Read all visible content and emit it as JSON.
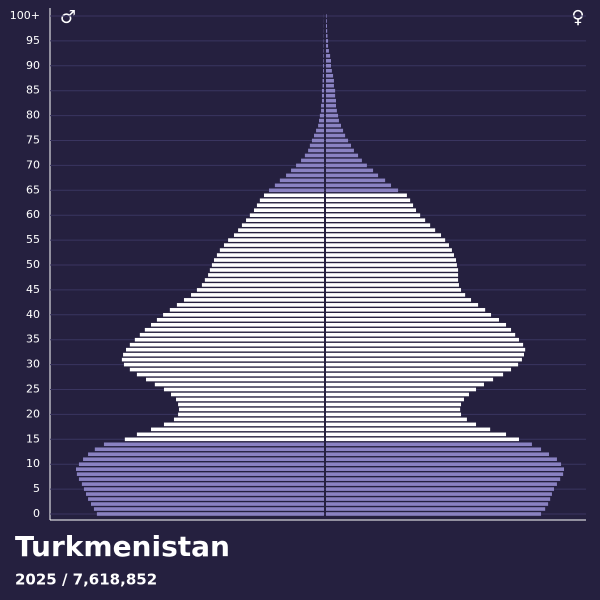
{
  "chart_data": {
    "type": "pyramid",
    "title": "Turkmenistan",
    "subtitle": "2025  /  7,618,852",
    "male_symbol": "♂",
    "female_symbol": "♀",
    "categories": [
      "0",
      null,
      null,
      null,
      null,
      "5",
      null,
      null,
      null,
      null,
      "10",
      null,
      null,
      null,
      null,
      "15",
      null,
      null,
      null,
      null,
      "20",
      null,
      null,
      null,
      null,
      "25",
      null,
      null,
      null,
      null,
      "30",
      null,
      null,
      null,
      null,
      "35",
      null,
      null,
      null,
      null,
      "40",
      null,
      null,
      null,
      null,
      "45",
      null,
      null,
      null,
      null,
      "50",
      null,
      null,
      null,
      null,
      "55",
      null,
      null,
      null,
      null,
      "60",
      null,
      null,
      null,
      null,
      "65",
      null,
      null,
      null,
      null,
      "70",
      null,
      null,
      null,
      null,
      "75",
      null,
      null,
      null,
      null,
      "80",
      null,
      null,
      null,
      null,
      "85",
      null,
      null,
      null,
      null,
      "90",
      null,
      null,
      null,
      null,
      "95",
      null,
      null,
      null,
      null,
      "100+"
    ],
    "series": [
      {
        "name": "Male",
        "values": [
          77200,
          78200,
          79200,
          80200,
          80900,
          81600,
          82300,
          83300,
          84000,
          84300,
          83300,
          81900,
          80200,
          77900,
          74800,
          67700,
          63600,
          58800,
          54400,
          51000,
          49600,
          49300,
          49600,
          50300,
          52000,
          54400,
          57500,
          60500,
          63600,
          66000,
          68000,
          68700,
          68300,
          67300,
          66000,
          64300,
          62600,
          60900,
          58800,
          56800,
          54700,
          52400,
          50000,
          47600,
          45200,
          43200,
          41500,
          40500,
          39400,
          38800,
          38100,
          37400,
          36400,
          35400,
          34000,
          32600,
          30600,
          29200,
          27900,
          26500,
          25200,
          23800,
          22800,
          21800,
          20400,
          18700,
          16700,
          15000,
          12900,
          11200,
          9500,
          7800,
          6500,
          5400,
          4800,
          4100,
          3400,
          2700,
          2000,
          1700,
          1400,
          1000,
          1000,
          700,
          700,
          700,
          500,
          500,
          400,
          300,
          300,
          200,
          200,
          150,
          120,
          100,
          80,
          60,
          50,
          40,
          30
        ]
      },
      {
        "name": "Female",
        "values": [
          73100,
          74500,
          75500,
          76200,
          76800,
          77500,
          78500,
          79600,
          80600,
          80900,
          79900,
          78500,
          75800,
          73100,
          70000,
          65600,
          61200,
          55800,
          51000,
          47900,
          45900,
          45600,
          45900,
          46900,
          48600,
          51000,
          53700,
          56800,
          60200,
          62900,
          65300,
          66600,
          67300,
          67700,
          67000,
          65600,
          64300,
          62900,
          61200,
          58800,
          56100,
          54100,
          51700,
          49300,
          47300,
          45900,
          45200,
          44900,
          44900,
          44900,
          44500,
          44200,
          43500,
          42800,
          41800,
          40500,
          39100,
          37100,
          35400,
          33700,
          32000,
          30600,
          29600,
          28600,
          27500,
          24500,
          22100,
          20100,
          17700,
          16000,
          13900,
          12200,
          10900,
          9500,
          8500,
          7500,
          6500,
          5800,
          5100,
          4400,
          4100,
          3700,
          3400,
          3400,
          3100,
          3100,
          2700,
          2700,
          2400,
          2000,
          1700,
          1700,
          1400,
          1000,
          700,
          700,
          500,
          400,
          340,
          270,
          200
        ]
      }
    ],
    "color_bands": [
      {
        "from": 0,
        "to": 14,
        "color": "#8a82c2"
      },
      {
        "from": 15,
        "to": 64,
        "color": "#ffffff"
      },
      {
        "from": 65,
        "to": 100,
        "color": "#8a82c2"
      }
    ],
    "grid": true
  }
}
